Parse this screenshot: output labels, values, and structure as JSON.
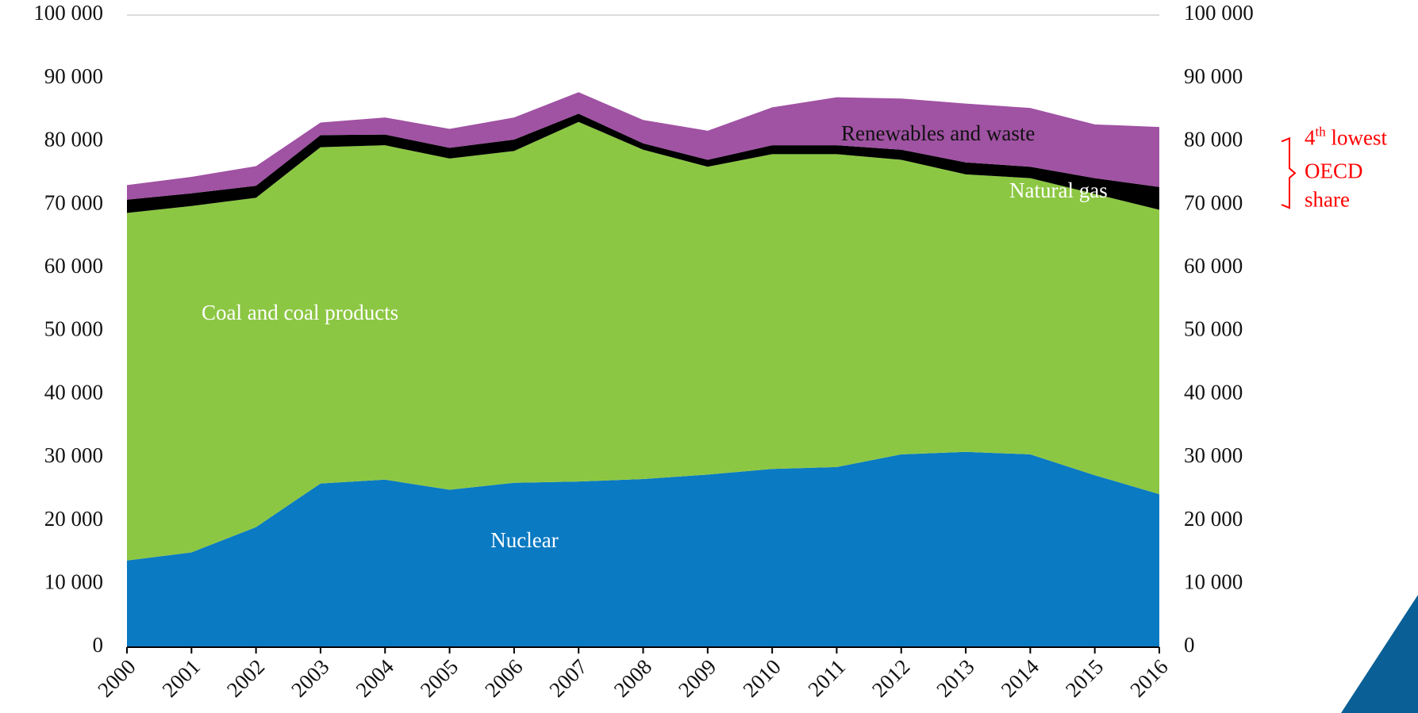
{
  "chart_data": {
    "type": "stacked-area",
    "x": [
      "2000",
      "2001",
      "2002",
      "2003",
      "2004",
      "2005",
      "2006",
      "2007",
      "2008",
      "2009",
      "2010",
      "2011",
      "2012",
      "2013",
      "2014",
      "2015",
      "2016"
    ],
    "series": [
      {
        "name": "Nuclear",
        "color": "#0a7ac2",
        "label_color": "#ffffff",
        "values": [
          13700,
          15000,
          19000,
          25900,
          26500,
          24900,
          26000,
          26200,
          26600,
          27300,
          28200,
          28500,
          30500,
          30900,
          30500,
          27200,
          24200
        ]
      },
      {
        "name": "Coal and coal products",
        "color": "#8cc743",
        "label_color": "#ffffff",
        "values": [
          55000,
          54800,
          52100,
          53200,
          52900,
          52400,
          52500,
          56900,
          52100,
          48700,
          49800,
          49500,
          46600,
          43900,
          43700,
          44500,
          45000
        ]
      },
      {
        "name": "Natural gas",
        "color": "#000000",
        "label_color": "#ffffff",
        "values": [
          2100,
          2000,
          1900,
          1900,
          1700,
          1700,
          1800,
          1300,
          1000,
          1100,
          1400,
          1400,
          1600,
          1900,
          1800,
          2500,
          3600
        ]
      },
      {
        "name": "Renewables and waste",
        "color": "#a052a3",
        "label_color": "#111111",
        "values": [
          2300,
          2600,
          3100,
          2000,
          2700,
          3000,
          3500,
          3400,
          3700,
          4600,
          6000,
          7600,
          8100,
          9300,
          9300,
          8500,
          9500
        ]
      }
    ],
    "ylim": [
      0,
      100000
    ],
    "yticks": [
      0,
      {
        "value": 10000,
        "label": "10 000"
      },
      {
        "value": 20000,
        "label": "20 000"
      },
      {
        "value": 30000,
        "label": "30 000"
      },
      {
        "value": 40000,
        "label": "40 000"
      },
      {
        "value": 50000,
        "label": "50 000"
      },
      {
        "value": 60000,
        "label": "60 000"
      },
      {
        "value": 70000,
        "label": "70 000"
      },
      {
        "value": 80000,
        "label": "80 000"
      },
      {
        "value": 90000,
        "label": "90 000"
      },
      {
        "value": 100000,
        "label": "100 000"
      }
    ],
    "y2lim": [
      0,
      100000
    ],
    "y2ticks": [
      0,
      {
        "value": 10000,
        "label": "10 000"
      },
      {
        "value": 20000,
        "label": "20 000"
      },
      {
        "value": 30000,
        "label": "30 000"
      },
      {
        "value": 40000,
        "label": "40 000"
      },
      {
        "value": 50000,
        "label": "50 000"
      },
      {
        "value": 60000,
        "label": "60 000"
      },
      {
        "value": 70000,
        "label": "70 000"
      },
      {
        "value": 80000,
        "label": "80 000"
      },
      {
        "value": 90000,
        "label": "90 000"
      },
      {
        "value": 100000,
        "label": "100 000"
      }
    ],
    "annotation": {
      "number": "4",
      "superscript": "th",
      "line1": " lowest",
      "line2": "OECD",
      "line3": "share",
      "range": [
        70000,
        80000
      ],
      "color": "#ff0000"
    }
  }
}
